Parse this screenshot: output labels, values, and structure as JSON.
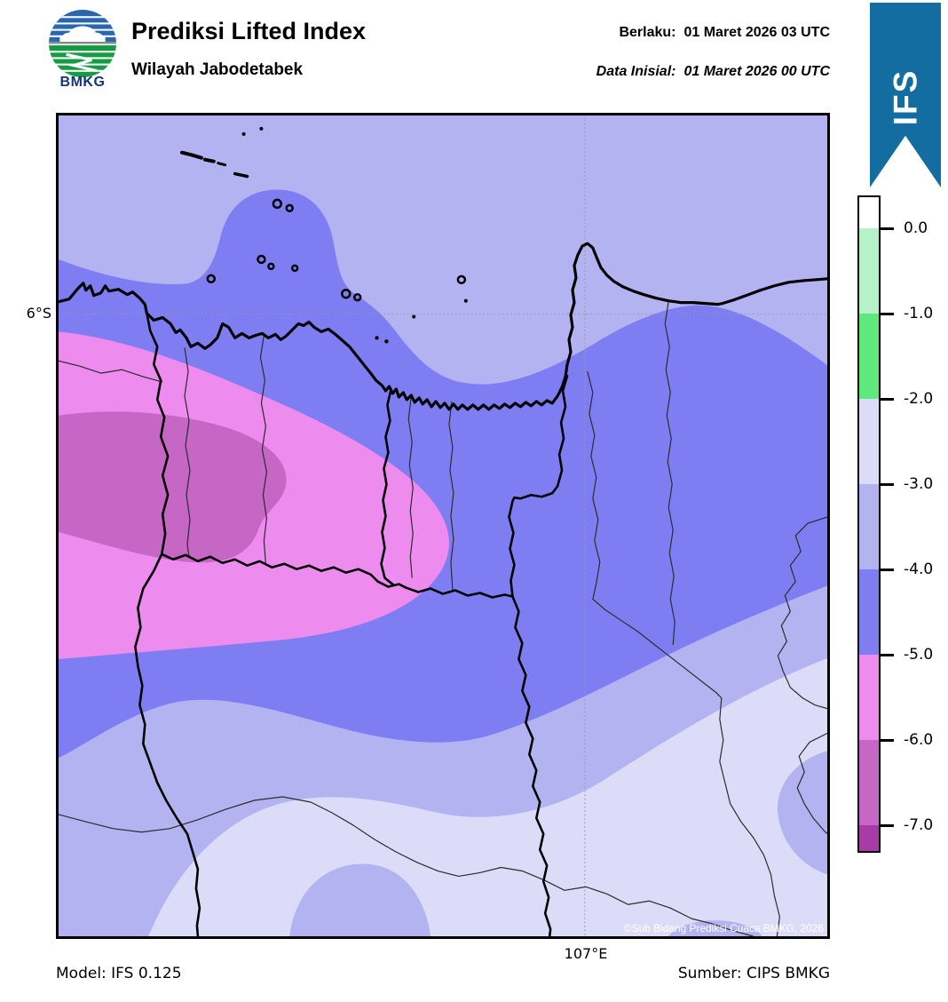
{
  "header": {
    "logo_text": "BMKG",
    "title": "Prediksi Lifted Index",
    "subtitle": "Wilayah Jabodetabek",
    "valid_label": "Berlaku:",
    "valid_value": "01 Maret 2026 03 UTC",
    "init_label": "Data Inisial:",
    "init_value": "01 Maret 2026 00 UTC"
  },
  "ribbon": {
    "label": "IFS",
    "color": "#146da0"
  },
  "colorbar": {
    "tick_labels": [
      "0.0",
      "-1.0",
      "-2.0",
      "-3.0",
      "-4.0",
      "-5.0",
      "-6.0",
      "-7.0"
    ],
    "segment_colors": [
      "#ffffff",
      "#b5f1c9",
      "#5fe87b",
      "#dcdcf8",
      "#b3b3f2",
      "#7e7ef2",
      "#ee8bee",
      "#c667c6",
      "#a83ba5"
    ]
  },
  "map": {
    "lat_label": "6°S",
    "lon_label": "107°E",
    "copyright": "©Sub Bidang Prediksi Cuaca BMKG, 2026",
    "colors": {
      "per": "#b3b3f2",
      "mblue": "#7e7ef2",
      "pink": "#ee8bee",
      "orch": "#c667c6",
      "lav": "#dcdcf8"
    }
  },
  "footer": {
    "model": "Model: IFS 0.125",
    "source": "Sumber: CIPS BMKG"
  },
  "chart_data": {
    "type": "heatmap",
    "title": "Prediksi Lifted Index",
    "region": "Wilayah Jabodetabek",
    "valid_time": "01 Maret 2026 03 UTC",
    "initial_time": "01 Maret 2026 00 UTC",
    "model": "IFS 0.125",
    "source": "CIPS BMKG",
    "legend_levels": [
      0.0,
      -1.0,
      -2.0,
      -3.0,
      -4.0,
      -5.0,
      -6.0,
      -7.0
    ],
    "legend_colors": [
      "#ffffff",
      "#b5f1c9",
      "#5fe87b",
      "#dcdcf8",
      "#b3b3f2",
      "#7e7ef2",
      "#ee8bee",
      "#c667c6",
      "#a83ba5"
    ],
    "gridlines": {
      "lat": "6°S",
      "lon": "107°E"
    },
    "map_regions": [
      {
        "value_range": [
          -3,
          -4
        ],
        "color": "#b3b3f2",
        "where": "sea in north and far south-west corner background"
      },
      {
        "value_range": [
          -4,
          -5
        ],
        "color": "#7e7ef2",
        "where": "broad diagonal band along the coast and central land, with a northward lobe around Kepulauan Seribu"
      },
      {
        "value_range": [
          -5,
          -6
        ],
        "color": "#ee8bee",
        "where": "large tongue over western land area reaching Jakarta's south-west"
      },
      {
        "value_range": [
          -6,
          -7
        ],
        "color": "#c667c6",
        "where": "inner blob at western edge inside the pink tongue"
      },
      {
        "value_range": [
          -2,
          -3
        ],
        "color": "#dcdcf8",
        "where": "southern and south-eastern lowland area"
      }
    ]
  }
}
